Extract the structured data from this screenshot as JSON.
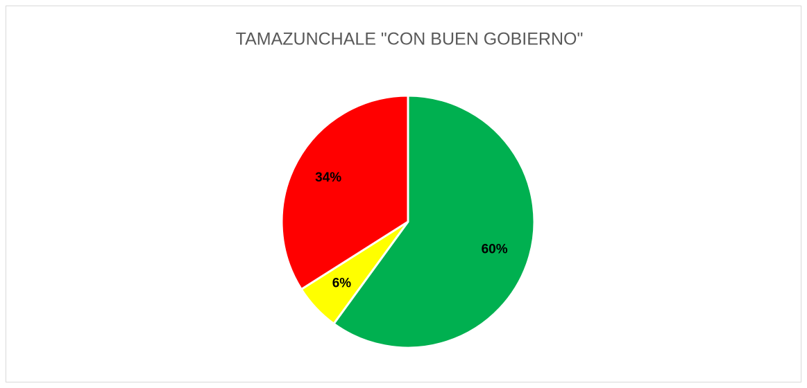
{
  "chart_data": {
    "type": "pie",
    "title": "TAMAZUNCHALE \"CON BUEN GOBIERNO\"",
    "values": [
      60,
      6,
      34
    ],
    "value_labels": [
      "60%",
      "6%",
      "34%"
    ],
    "colors": [
      "#00b050",
      "#ffff00",
      "#ff0000"
    ]
  }
}
